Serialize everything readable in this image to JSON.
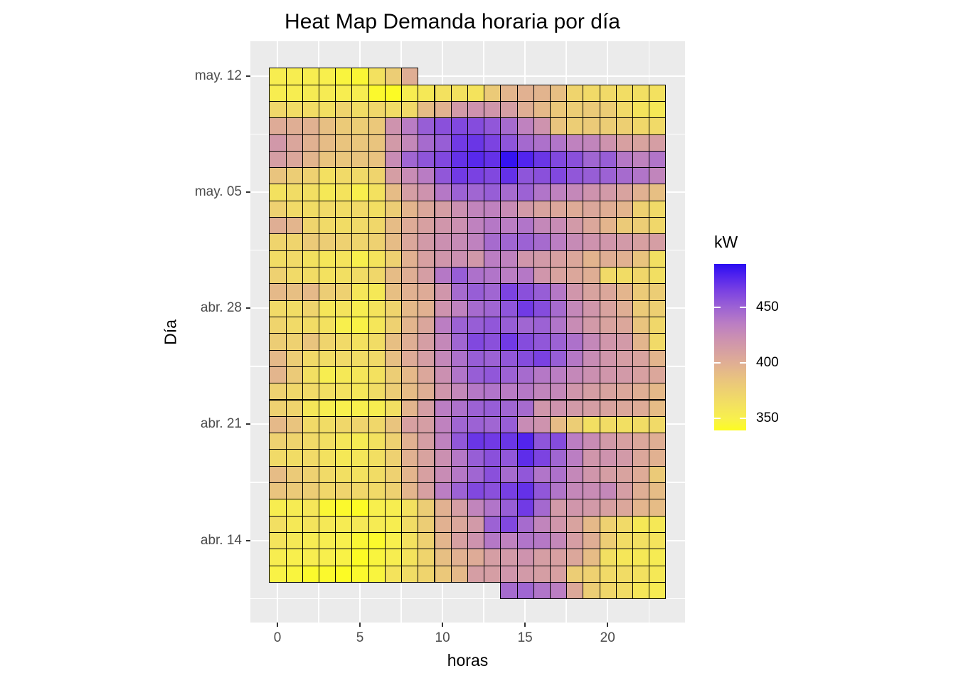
{
  "title": "Heat Map Demanda horaria por día",
  "axes": {
    "x_title": "horas",
    "y_title": "Día"
  },
  "legend": {
    "title": "kW",
    "tick_values": [
      450,
      400,
      350
    ],
    "tick_labels": [
      "450",
      "400",
      "350"
    ]
  },
  "colors": {
    "panel_bg": "#EBEBEB",
    "grid": "#FFFFFF",
    "tile_border": "#000000",
    "tick_label": "#4D4D4D",
    "tick_mark": "#333333",
    "text": "#000000"
  },
  "chart_data": {
    "type": "heatmap",
    "title": "Heat Map Demanda horaria por día",
    "xlabel": "horas",
    "ylabel": "Día",
    "unit": "kW",
    "x": [
      0,
      1,
      2,
      3,
      4,
      5,
      6,
      7,
      8,
      9,
      10,
      11,
      12,
      13,
      14,
      15,
      16,
      17,
      18,
      19,
      20,
      21,
      22,
      23
    ],
    "x_ticks": [
      0,
      5,
      10,
      15,
      20
    ],
    "x_minor_ticks": [
      2.5,
      7.5,
      12.5,
      17.5,
      22.5
    ],
    "y_days": [
      "may. 12",
      "may. 11",
      "may. 10",
      "may. 09",
      "may. 08",
      "may. 07",
      "may. 06",
      "may. 05",
      "may. 04",
      "may. 03",
      "may. 02",
      "may. 01",
      "abr. 30",
      "abr. 29",
      "abr. 28",
      "abr. 27",
      "abr. 26",
      "abr. 25",
      "abr. 24",
      "abr. 23",
      "abr. 22",
      "abr. 21",
      "abr. 20",
      "abr. 19",
      "abr. 18",
      "abr. 17",
      "abr. 16",
      "abr. 15",
      "abr. 14",
      "abr. 13",
      "abr. 12",
      "abr. 11"
    ],
    "y_tick_rows": [
      0,
      7,
      14,
      21,
      28
    ],
    "y_tick_labels": [
      "may. 12",
      "may. 05",
      "abr. 28",
      "abr. 21",
      "abr. 14"
    ],
    "y_minor_rows": [
      3.5,
      10.5,
      17.5,
      24.5,
      31.5
    ],
    "color_domain": [
      339,
      489
    ],
    "color_stops": [
      [
        0.0,
        "#FCFC21"
      ],
      [
        0.07,
        "#F8F04C"
      ],
      [
        0.17,
        "#F2DE63"
      ],
      [
        0.31,
        "#E9C37F"
      ],
      [
        0.41,
        "#DFAD95"
      ],
      [
        0.54,
        "#CE93AE"
      ],
      [
        0.64,
        "#BB7EC3"
      ],
      [
        0.74,
        "#9C62D4"
      ],
      [
        0.84,
        "#7A41E2"
      ],
      [
        0.93,
        "#5023EE"
      ],
      [
        1.0,
        "#2A0DF2"
      ]
    ],
    "values": [
      [
        352,
        352,
        352,
        350,
        346,
        344,
        362,
        378,
        400,
        null,
        null,
        null,
        null,
        null,
        null,
        null,
        null,
        null,
        null,
        null,
        null,
        null,
        null,
        null
      ],
      [
        352,
        352,
        354,
        354,
        352,
        352,
        342,
        340,
        352,
        356,
        362,
        362,
        360,
        380,
        395,
        398,
        396,
        388,
        372,
        368,
        368,
        365,
        364,
        362
      ],
      [
        370,
        366,
        366,
        364,
        372,
        366,
        370,
        366,
        368,
        390,
        397,
        415,
        420,
        418,
        412,
        400,
        392,
        382,
        378,
        380,
        378,
        368,
        360,
        356
      ],
      [
        402,
        400,
        398,
        388,
        380,
        378,
        382,
        420,
        436,
        452,
        458,
        462,
        460,
        455,
        445,
        432,
        420,
        385,
        378,
        380,
        378,
        376,
        370,
        368
      ],
      [
        416,
        406,
        398,
        390,
        385,
        383,
        385,
        415,
        428,
        445,
        452,
        468,
        470,
        464,
        456,
        446,
        442,
        440,
        432,
        430,
        420,
        410,
        408,
        412
      ],
      [
        412,
        405,
        395,
        385,
        383,
        385,
        386,
        425,
        448,
        456,
        462,
        472,
        476,
        472,
        486,
        478,
        470,
        462,
        458,
        448,
        452,
        438,
        432,
        440
      ],
      [
        385,
        378,
        375,
        363,
        368,
        368,
        372,
        412,
        425,
        436,
        455,
        468,
        465,
        462,
        472,
        456,
        458,
        462,
        455,
        452,
        450,
        445,
        440,
        430
      ],
      [
        362,
        366,
        364,
        356,
        360,
        350,
        362,
        390,
        412,
        420,
        438,
        450,
        448,
        452,
        445,
        450,
        440,
        432,
        428,
        420,
        415,
        408,
        398,
        388
      ],
      [
        375,
        368,
        366,
        368,
        366,
        368,
        364,
        378,
        395,
        405,
        412,
        422,
        430,
        432,
        425,
        415,
        408,
        405,
        402,
        405,
        400,
        395,
        375,
        368
      ],
      [
        400,
        395,
        372,
        368,
        366,
        368,
        370,
        390,
        402,
        410,
        418,
        422,
        432,
        438,
        435,
        440,
        428,
        425,
        415,
        405,
        395,
        380,
        378,
        370
      ],
      [
        372,
        372,
        380,
        378,
        375,
        372,
        375,
        390,
        405,
        415,
        422,
        426,
        432,
        445,
        448,
        450,
        445,
        435,
        426,
        420,
        418,
        415,
        410,
        412
      ],
      [
        366,
        368,
        362,
        358,
        360,
        350,
        360,
        375,
        398,
        410,
        418,
        422,
        416,
        435,
        432,
        418,
        415,
        410,
        405,
        396,
        400,
        398,
        385,
        364
      ],
      [
        375,
        368,
        366,
        362,
        364,
        366,
        370,
        390,
        400,
        412,
        438,
        452,
        442,
        440,
        435,
        438,
        418,
        408,
        405,
        400,
        368,
        366,
        370,
        364
      ],
      [
        392,
        388,
        392,
        378,
        375,
        358,
        356,
        388,
        398,
        402,
        418,
        445,
        452,
        448,
        464,
        458,
        452,
        438,
        418,
        408,
        405,
        395,
        380,
        378
      ],
      [
        368,
        366,
        372,
        358,
        360,
        352,
        360,
        372,
        392,
        398,
        420,
        432,
        445,
        448,
        456,
        468,
        460,
        445,
        428,
        418,
        408,
        400,
        380,
        376
      ],
      [
        372,
        368,
        366,
        362,
        350,
        348,
        358,
        375,
        395,
        406,
        435,
        450,
        452,
        455,
        452,
        448,
        450,
        440,
        425,
        415,
        408,
        405,
        385,
        370
      ],
      [
        378,
        375,
        385,
        372,
        368,
        362,
        366,
        388,
        400,
        412,
        428,
        448,
        462,
        458,
        468,
        460,
        455,
        450,
        442,
        428,
        418,
        415,
        395,
        368
      ],
      [
        392,
        378,
        368,
        366,
        368,
        366,
        368,
        388,
        402,
        412,
        428,
        442,
        452,
        450,
        455,
        460,
        465,
        452,
        438,
        425,
        418,
        412,
        408,
        395
      ],
      [
        395,
        380,
        364,
        352,
        356,
        358,
        362,
        378,
        392,
        405,
        422,
        440,
        452,
        455,
        450,
        445,
        438,
        435,
        428,
        422,
        418,
        415,
        410,
        405
      ],
      [
        375,
        370,
        368,
        364,
        362,
        358,
        366,
        378,
        390,
        400,
        418,
        428,
        438,
        440,
        436,
        438,
        430,
        428,
        418,
        412,
        408,
        405,
        400,
        392
      ],
      [
        375,
        372,
        358,
        352,
        350,
        350,
        352,
        364,
        395,
        412,
        435,
        442,
        450,
        452,
        448,
        445,
        418,
        420,
        415,
        412,
        408,
        405,
        402,
        390
      ],
      [
        392,
        385,
        368,
        366,
        370,
        372,
        370,
        385,
        410,
        412,
        432,
        448,
        450,
        448,
        452,
        425,
        420,
        390,
        378,
        364,
        366,
        364,
        366,
        368
      ],
      [
        375,
        372,
        368,
        364,
        358,
        354,
        362,
        375,
        398,
        412,
        432,
        455,
        470,
        468,
        470,
        478,
        456,
        460,
        435,
        425,
        415,
        410,
        405,
        400
      ],
      [
        368,
        366,
        368,
        362,
        356,
        358,
        364,
        375,
        398,
        408,
        422,
        438,
        452,
        458,
        455,
        474,
        464,
        448,
        435,
        418,
        420,
        415,
        405,
        398
      ],
      [
        390,
        380,
        375,
        368,
        364,
        362,
        366,
        375,
        395,
        410,
        425,
        438,
        448,
        458,
        445,
        455,
        440,
        442,
        428,
        418,
        412,
        408,
        402,
        380
      ],
      [
        385,
        380,
        378,
        370,
        372,
        370,
        368,
        375,
        395,
        410,
        435,
        450,
        462,
        458,
        466,
        472,
        455,
        440,
        428,
        425,
        428,
        412,
        400,
        390
      ],
      [
        352,
        354,
        358,
        344,
        342,
        340,
        350,
        352,
        362,
        378,
        398,
        412,
        430,
        440,
        452,
        468,
        446,
        415,
        418,
        415,
        410,
        405,
        395,
        390
      ],
      [
        364,
        356,
        360,
        356,
        354,
        356,
        354,
        352,
        366,
        378,
        398,
        405,
        415,
        450,
        462,
        445,
        430,
        418,
        408,
        392,
        375,
        368,
        356,
        356
      ],
      [
        360,
        356,
        354,
        352,
        350,
        344,
        342,
        350,
        362,
        375,
        395,
        410,
        420,
        438,
        432,
        440,
        438,
        428,
        412,
        400,
        378,
        366,
        364,
        360
      ],
      [
        352,
        350,
        352,
        350,
        348,
        340,
        346,
        352,
        360,
        372,
        388,
        398,
        402,
        412,
        415,
        420,
        412,
        410,
        405,
        390,
        364,
        358,
        356,
        354
      ],
      [
        348,
        346,
        342,
        342,
        340,
        342,
        346,
        360,
        366,
        372,
        382,
        392,
        412,
        412,
        418,
        415,
        412,
        410,
        378,
        375,
        368,
        366,
        362,
        356
      ],
      [
        null,
        null,
        null,
        null,
        null,
        null,
        null,
        null,
        null,
        null,
        null,
        null,
        null,
        null,
        445,
        448,
        440,
        435,
        404,
        378,
        370,
        366,
        358,
        354
      ]
    ]
  }
}
